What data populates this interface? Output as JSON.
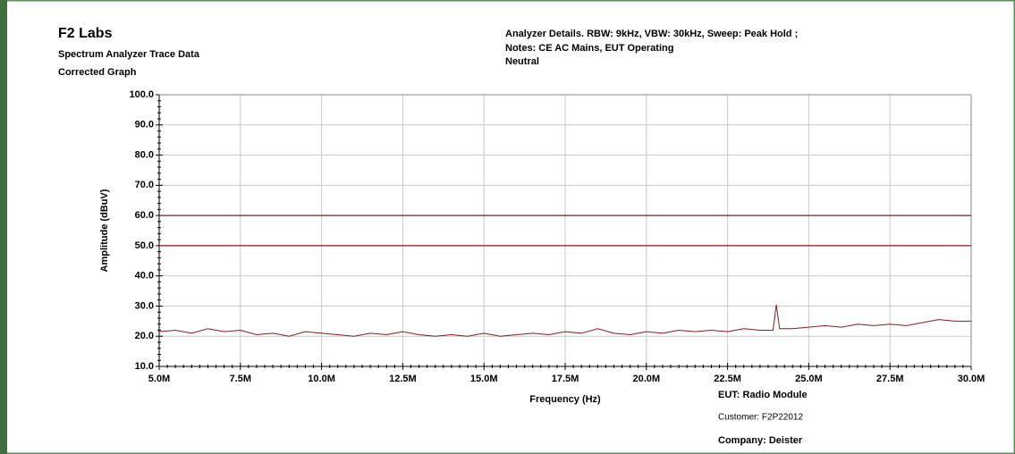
{
  "header": {
    "company": "F2 Labs",
    "subtitle": "Spectrum Analyzer Trace Data",
    "graph_kind": "Corrected Graph",
    "details": "Analyzer Details.  RBW:  9kHz, VBW: 30kHz, Sweep: Peak Hold ;",
    "notes": "Notes: CE AC Mains, EUT Operating",
    "line": "Neutral"
  },
  "footer": {
    "eut": "EUT: Radio Module",
    "customer": "Customer: F2P22012",
    "company": "Company: Deister"
  },
  "chart_data": {
    "type": "line",
    "xlabel": "Frequency (Hz)",
    "ylabel": "Amplitude (dBuV)",
    "xlim": [
      5000000,
      30000000
    ],
    "xticks": [
      {
        "value": 5000000,
        "label": "5.0M"
      },
      {
        "value": 7500000,
        "label": "7.5M"
      },
      {
        "value": 10000000,
        "label": "10.0M"
      },
      {
        "value": 12500000,
        "label": "12.5M"
      },
      {
        "value": 15000000,
        "label": "15.0M"
      },
      {
        "value": 17500000,
        "label": "17.5M"
      },
      {
        "value": 20000000,
        "label": "20.0M"
      },
      {
        "value": 22500000,
        "label": "22.5M"
      },
      {
        "value": 25000000,
        "label": "25.0M"
      },
      {
        "value": 27500000,
        "label": "27.5M"
      },
      {
        "value": 30000000,
        "label": "30.0M"
      }
    ],
    "ylim": [
      10,
      100
    ],
    "yticks": [
      {
        "value": 10,
        "label": "10.0"
      },
      {
        "value": 20,
        "label": "20.0"
      },
      {
        "value": 30,
        "label": "30.0"
      },
      {
        "value": 40,
        "label": "40.0"
      },
      {
        "value": 50,
        "label": "50.0"
      },
      {
        "value": 60,
        "label": "60.0"
      },
      {
        "value": 70,
        "label": "70.0"
      },
      {
        "value": 80,
        "label": "80.0"
      },
      {
        "value": 90,
        "label": "90.0"
      },
      {
        "value": 100,
        "label": "100.0"
      }
    ],
    "grid": true,
    "limit_lines": [
      {
        "value": 60,
        "color": "#8b1a1a"
      },
      {
        "value": 50,
        "color": "#8b1a1a"
      }
    ],
    "x": [
      5000000,
      5500000,
      6000000,
      6500000,
      7000000,
      7500000,
      8000000,
      8500000,
      9000000,
      9500000,
      10000000,
      10500000,
      11000000,
      11500000,
      12000000,
      12500000,
      13000000,
      13500000,
      14000000,
      14500000,
      15000000,
      15500000,
      16000000,
      16500000,
      17000000,
      17500000,
      18000000,
      18500000,
      19000000,
      19500000,
      20000000,
      20500000,
      21000000,
      21500000,
      22000000,
      22500000,
      23000000,
      23500000,
      23900000,
      24000000,
      24100000,
      24500000,
      25000000,
      25500000,
      26000000,
      26500000,
      27000000,
      27500000,
      28000000,
      28500000,
      29000000,
      29500000,
      30000000
    ],
    "series": [
      {
        "color": "#8b1a1a",
        "values": [
          21.5,
          22,
          21,
          22.5,
          21.5,
          22,
          20.5,
          21,
          20,
          21.5,
          21,
          20.5,
          20,
          21,
          20.5,
          21.5,
          20.5,
          20,
          20.5,
          20,
          21,
          20,
          20.5,
          21,
          20.5,
          21.5,
          21,
          22.5,
          21,
          20.5,
          21.5,
          21,
          22,
          21.5,
          22,
          21.5,
          22.5,
          22,
          22,
          30.5,
          22.5,
          22.5,
          23,
          23.5,
          23,
          24,
          23.5,
          24,
          23.5,
          24.5,
          25.5,
          25,
          25
        ]
      }
    ]
  }
}
